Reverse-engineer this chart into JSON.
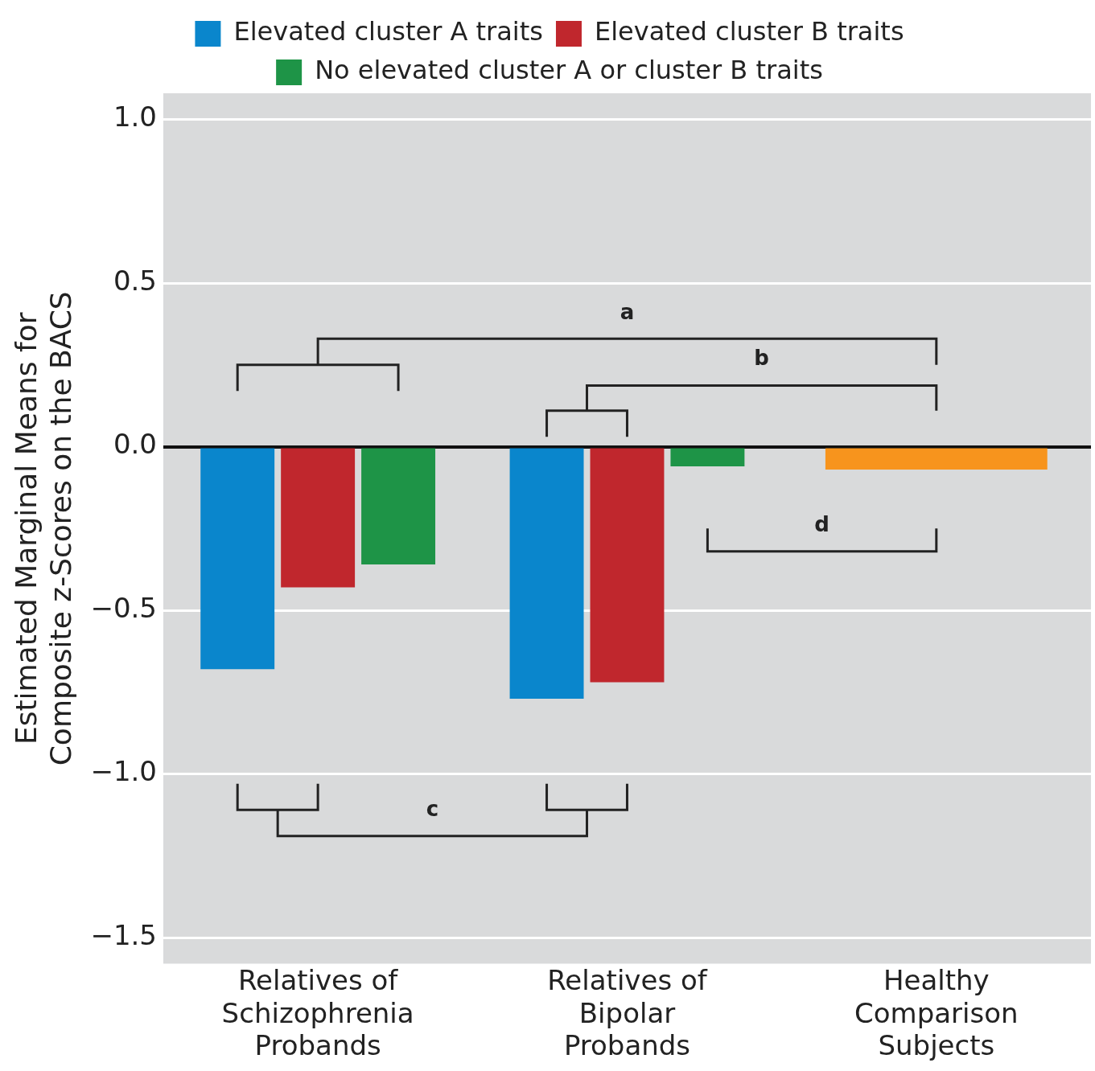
{
  "chart_data": {
    "type": "bar",
    "ylabel": "Estimated Marginal Means for Composite z-Scores on the BACS",
    "categories": [
      "Relatives of Schizophrenia Probands",
      "Relatives of Bipolar Probands",
      "Healthy Comparison Subjects"
    ],
    "series": [
      {
        "name": "Elevated cluster A traits",
        "color": "#0a86cc",
        "values": [
          -0.68,
          -0.77,
          null
        ]
      },
      {
        "name": "Elevated cluster B traits",
        "color": "#c0272d",
        "values": [
          -0.43,
          -0.72,
          null
        ]
      },
      {
        "name": "No elevated cluster A or cluster B traits",
        "color": "#1e9447",
        "values": [
          -0.36,
          -0.06,
          null
        ]
      },
      {
        "color": "#f7941d",
        "values": [
          null,
          null,
          -0.07
        ]
      }
    ],
    "ylim": [
      -1.58,
      1.08
    ],
    "yticks": [
      {
        "value": -1.5,
        "label": "−1.5"
      },
      {
        "value": -1.0,
        "label": "−1.0"
      },
      {
        "value": -0.5,
        "label": "−0.5"
      },
      {
        "value": 0.0,
        "label": "0.0"
      },
      {
        "value": 0.5,
        "label": "0.5"
      },
      {
        "value": 1.0,
        "label": "1.0"
      }
    ],
    "grid": "y",
    "legend": "top",
    "annotations": [
      "a",
      "b",
      "c",
      "d"
    ]
  }
}
